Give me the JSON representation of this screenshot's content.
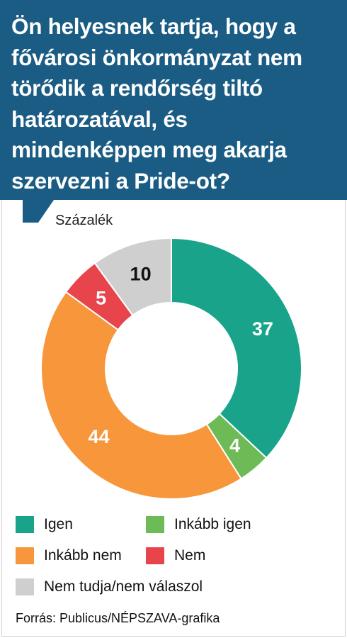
{
  "title": "Ön helyesnek tartja, hogy a fővárosi önkormányzat nem törődik a rendőrség tiltó határozatával, és mindenképpen meg akarja szervezni a Pride-ot?",
  "unit_label": "Százalék",
  "source": "Forrás: Publicus/NÉPSZAVA-grafika",
  "colors": {
    "header": "#1a5c83",
    "Igen": "#18a38a",
    "Inkább igen": "#6dbb56",
    "Inkább nem": "#f7963a",
    "Nem": "#e8444c",
    "Nem tudja/nem válaszol": "#cfcfcf"
  },
  "chart_data": {
    "type": "pie",
    "variant": "donut",
    "title": "Ön helyesnek tartja, hogy a fővárosi önkormányzat nem törődik a rendőrség tiltó határozatával, és mindenképpen meg akarja szervezni a Pride-ot?",
    "unit": "Százalék",
    "categories": [
      "Igen",
      "Inkább igen",
      "Inkább nem",
      "Nem",
      "Nem tudja/nem válaszol"
    ],
    "values": [
      37,
      4,
      44,
      5,
      10
    ],
    "labels": [
      "37",
      "4",
      "44",
      "5",
      "10"
    ],
    "label_colors": [
      "#ffffff",
      "#ffffff",
      "#ffffff",
      "#ffffff",
      "#111111"
    ],
    "legend_position": "bottom",
    "start": "top",
    "direction": "clockwise"
  },
  "legend": [
    {
      "label": "Igen"
    },
    {
      "label": "Inkább igen"
    },
    {
      "label": "Inkább nem"
    },
    {
      "label": "Nem"
    },
    {
      "label": "Nem tudja/nem válaszol"
    }
  ]
}
